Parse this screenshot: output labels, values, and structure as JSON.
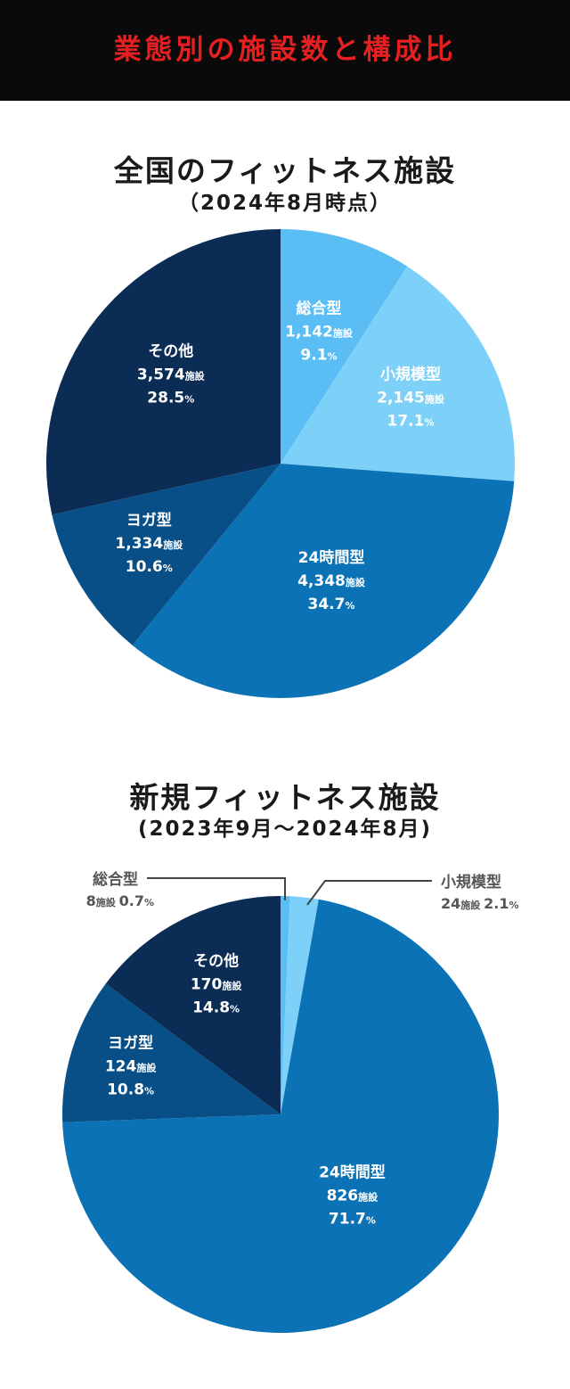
{
  "banner": {
    "title": "業態別の施設数と構成比"
  },
  "chart_data": [
    {
      "type": "pie",
      "title": "全国のフィットネス施設",
      "subtitle": "（2024年8月時点）",
      "slices": [
        {
          "name": "総合型",
          "count": "1,142",
          "percent": "9.1",
          "value": 9.1,
          "color": "#5abef5"
        },
        {
          "name": "小規模型",
          "count": "2,145",
          "percent": "17.1",
          "value": 17.1,
          "color": "#7dd1f8"
        },
        {
          "name": "24時間型",
          "count": "4,348",
          "percent": "34.7",
          "value": 34.7,
          "color": "#0b72b6"
        },
        {
          "name": "ヨガ型",
          "count": "1,334",
          "percent": "10.6",
          "value": 10.6,
          "color": "#074f86"
        },
        {
          "name": "その他",
          "count": "3,574",
          "percent": "28.5",
          "value": 28.5,
          "color": "#0a2c55"
        }
      ],
      "unit_label": "施設",
      "percent_sign": "%"
    },
    {
      "type": "pie",
      "title": "新規フィットネス施設",
      "subtitle": "(2023年9月～2024年8月)",
      "slices": [
        {
          "name": "総合型",
          "count": "8",
          "percent": "0.7",
          "value": 0.7,
          "color": "#5abef5"
        },
        {
          "name": "小規模型",
          "count": "24",
          "percent": "2.1",
          "value": 2.1,
          "color": "#7dd1f8"
        },
        {
          "name": "24時間型",
          "count": "826",
          "percent": "71.7",
          "value": 71.7,
          "color": "#0b72b6"
        },
        {
          "name": "ヨガ型",
          "count": "124",
          "percent": "10.8",
          "value": 10.8,
          "color": "#074f86"
        },
        {
          "name": "その他",
          "count": "170",
          "percent": "14.8",
          "value": 14.8,
          "color": "#0a2c55"
        }
      ],
      "unit_label": "施設",
      "percent_sign": "%"
    }
  ]
}
